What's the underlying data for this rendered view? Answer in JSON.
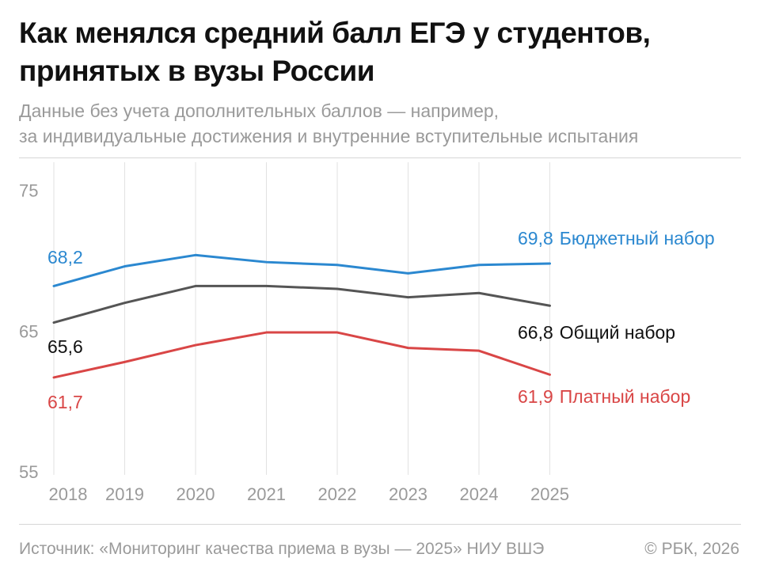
{
  "header": {
    "title_lines": [
      "Как менялся средний балл ЕГЭ у студентов,",
      "принятых в вузы России"
    ],
    "subtitle_lines": [
      "Данные без учета дополнительных баллов — например,",
      "за индивидуальные достижения и внутренние вступительные испытания"
    ]
  },
  "chart_data": {
    "type": "line",
    "x": [
      "2018",
      "2019",
      "2020",
      "2021",
      "2022",
      "2023",
      "2024",
      "2025"
    ],
    "ylim": [
      55,
      77
    ],
    "yticks": [
      55,
      65,
      75
    ],
    "ytick_labels": [
      "55",
      "65",
      "75"
    ],
    "grid": "vertical",
    "series": [
      {
        "name": "Бюджетный набор",
        "color": "#2b88d0",
        "values": [
          68.2,
          69.6,
          70.4,
          69.9,
          69.7,
          69.1,
          69.7,
          69.8
        ],
        "start_label": "68,2",
        "end_label": "69,8",
        "end_text": "Бюджетный набор"
      },
      {
        "name": "Общий набор",
        "color": "#555555",
        "values": [
          65.6,
          67.0,
          68.2,
          68.2,
          68.0,
          67.4,
          67.7,
          66.8
        ],
        "start_label": "65,6",
        "end_label": "66,8",
        "end_text": "Общий набор",
        "label_color": "#111111"
      },
      {
        "name": "Платный набор",
        "color": "#d94646",
        "values": [
          61.7,
          62.8,
          64.0,
          64.9,
          64.9,
          63.8,
          63.6,
          61.9
        ],
        "start_label": "61,7",
        "end_label": "61,9",
        "end_text": "Платный набор"
      }
    ]
  },
  "footer": {
    "source": "Источник: «Мониторинг качества приема в вузы — 2025» НИУ ВШЭ",
    "copyright": "© РБК, 2026"
  }
}
